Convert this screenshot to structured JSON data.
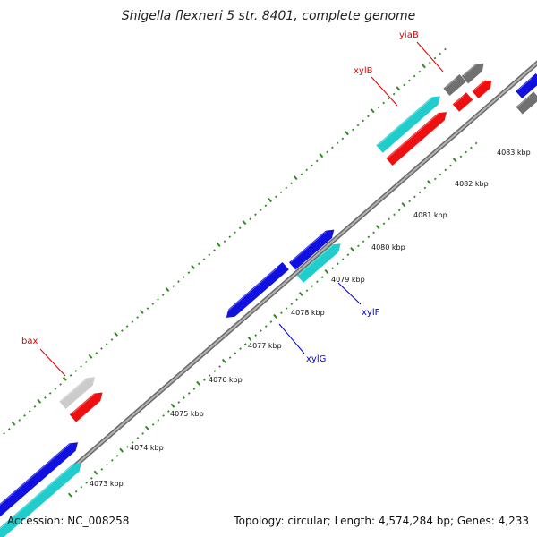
{
  "title": "Shigella flexneri 5 str. 8401, complete genome",
  "footer": {
    "accession": "Accession: NC_008258",
    "summary": "Topology: circular; Length: 4,574,284 bp; Genes: 4,233"
  },
  "colors": {
    "background": "#ffffff",
    "backbone": "#8a8a8a",
    "tick": "#2e8b22",
    "forward_cds": "#1010e0",
    "reverse_cds": "#20cccc",
    "rna_like": "#ee1010",
    "pseudo": "#707070",
    "misc": "#cccccc",
    "label_red": "#dd0000",
    "label_blue": "#0000cc"
  },
  "scale_labels": [
    "4073 kbp",
    "4074 kbp",
    "4075 kbp",
    "4076 kbp",
    "4077 kbp",
    "4078 kbp",
    "4079 kbp",
    "4080 kbp",
    "4081 kbp",
    "4082 kbp",
    "4083 kbp"
  ],
  "gene_labels": [
    {
      "name": "yiaB",
      "color": "red"
    },
    {
      "name": "xylB",
      "color": "red"
    },
    {
      "name": "xylF",
      "color": "blue"
    },
    {
      "name": "xylG",
      "color": "blue"
    },
    {
      "name": "bax",
      "color": "red"
    }
  ]
}
